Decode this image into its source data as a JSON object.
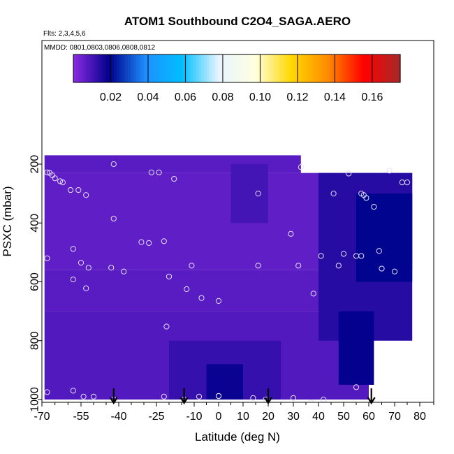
{
  "chart_data": {
    "type": "heatmap",
    "title": "ATOM1 Southbound C2O4_SAGA.AERO",
    "subtitle_flights": "Flts: 2,3,4,5,6",
    "subtitle_dates": "MMDD: 0801,0803,0806,0808,0812",
    "xlabel": "Latitude (deg N)",
    "ylabel": "PSXC (mbar)",
    "xlim": [
      -70,
      85
    ],
    "ylim": [
      1000,
      0
    ],
    "x_ticks": [
      -70,
      -55,
      -40,
      -25,
      -10,
      0,
      10,
      20,
      30,
      40,
      50,
      60,
      70,
      80
    ],
    "x_minor_ticks": [
      -65,
      -60,
      -50,
      -45,
      -35,
      -30,
      -20,
      -15,
      -5,
      5,
      15,
      25,
      35,
      45,
      55,
      65,
      75,
      85
    ],
    "y_ticks": [
      200,
      400,
      600,
      800,
      1000
    ],
    "colorbar": {
      "ticks": [
        0.02,
        0.04,
        0.06,
        0.08,
        0.1,
        0.12,
        0.14,
        0.16
      ],
      "tick_labels": [
        "0.02",
        "0.04",
        "0.06",
        "0.08",
        "0.10",
        "0.12",
        "0.14",
        "0.16"
      ],
      "range": [
        0,
        0.175
      ],
      "colors": [
        "#8b2be2",
        "#00008b",
        "#1e90ff",
        "#00bfff",
        "#e8f4ff",
        "#ffffe0",
        "#ffd700",
        "#ff8c00",
        "#ff0000",
        "#a52a2a"
      ]
    },
    "grid": false,
    "legend": "colorbar top",
    "field_regions": [
      {
        "lat": [
          -69,
          33
        ],
        "p": [
          170,
          230
        ],
        "value": 0.007
      },
      {
        "lat": [
          -69,
          77
        ],
        "p": [
          230,
          560
        ],
        "value": 0.006
      },
      {
        "lat": [
          -69,
          70
        ],
        "p": [
          560,
          700
        ],
        "value": 0.007
      },
      {
        "lat": [
          -69,
          60
        ],
        "p": [
          700,
          1000
        ],
        "value": 0.008
      },
      {
        "lat": [
          -20,
          25
        ],
        "p": [
          800,
          1000
        ],
        "value": 0.012
      },
      {
        "lat": [
          -5,
          10
        ],
        "p": [
          880,
          1000
        ],
        "value": 0.018
      },
      {
        "lat": [
          40,
          77
        ],
        "p": [
          230,
          800
        ],
        "value": 0.014
      },
      {
        "lat": [
          55,
          77
        ],
        "p": [
          300,
          600
        ],
        "value": 0.02
      },
      {
        "lat": [
          48,
          62
        ],
        "p": [
          700,
          950
        ],
        "value": 0.019
      },
      {
        "lat": [
          5,
          20
        ],
        "p": [
          200,
          400
        ],
        "value": 0.01
      }
    ],
    "samples": [
      {
        "lat": -42,
        "p": 200
      },
      {
        "lat": -68,
        "p": 228
      },
      {
        "lat": -67,
        "p": 230
      },
      {
        "lat": -66,
        "p": 238
      },
      {
        "lat": -65,
        "p": 248
      },
      {
        "lat": -63,
        "p": 258
      },
      {
        "lat": -62,
        "p": 262
      },
      {
        "lat": -59,
        "p": 288
      },
      {
        "lat": -56,
        "p": 288
      },
      {
        "lat": -53,
        "p": 305
      },
      {
        "lat": -27,
        "p": 228
      },
      {
        "lat": -24,
        "p": 228
      },
      {
        "lat": -18,
        "p": 250
      },
      {
        "lat": -42,
        "p": 385
      },
      {
        "lat": 16,
        "p": 300
      },
      {
        "lat": 33,
        "p": 210
      },
      {
        "lat": 46,
        "p": 300
      },
      {
        "lat": 52,
        "p": 232
      },
      {
        "lat": 57,
        "p": 300
      },
      {
        "lat": 58,
        "p": 305
      },
      {
        "lat": 59,
        "p": 315
      },
      {
        "lat": 62,
        "p": 345
      },
      {
        "lat": 68,
        "p": 222
      },
      {
        "lat": 73,
        "p": 262
      },
      {
        "lat": 75,
        "p": 262
      },
      {
        "lat": -31,
        "p": 465
      },
      {
        "lat": -28,
        "p": 468
      },
      {
        "lat": -22,
        "p": 462
      },
      {
        "lat": -58,
        "p": 488
      },
      {
        "lat": -68,
        "p": 520
      },
      {
        "lat": -55,
        "p": 535
      },
      {
        "lat": -52,
        "p": 552
      },
      {
        "lat": -43,
        "p": 552
      },
      {
        "lat": -38,
        "p": 565
      },
      {
        "lat": -11,
        "p": 545
      },
      {
        "lat": 16,
        "p": 545
      },
      {
        "lat": 29,
        "p": 437
      },
      {
        "lat": 32,
        "p": 545
      },
      {
        "lat": 41,
        "p": 512
      },
      {
        "lat": 48,
        "p": 545
      },
      {
        "lat": 50,
        "p": 505
      },
      {
        "lat": 55,
        "p": 512
      },
      {
        "lat": 57,
        "p": 512
      },
      {
        "lat": 64,
        "p": 495
      },
      {
        "lat": 65,
        "p": 555
      },
      {
        "lat": 70,
        "p": 565
      },
      {
        "lat": -58,
        "p": 592
      },
      {
        "lat": -53,
        "p": 622
      },
      {
        "lat": -20,
        "p": 582
      },
      {
        "lat": -13,
        "p": 625
      },
      {
        "lat": -7,
        "p": 655
      },
      {
        "lat": 0,
        "p": 665
      },
      {
        "lat": 38,
        "p": 640
      },
      {
        "lat": -21,
        "p": 752
      },
      {
        "lat": -68,
        "p": 975
      },
      {
        "lat": -58,
        "p": 970
      },
      {
        "lat": -54,
        "p": 990
      },
      {
        "lat": -50,
        "p": 990
      },
      {
        "lat": -42,
        "p": 1000
      },
      {
        "lat": -22,
        "p": 990
      },
      {
        "lat": -14,
        "p": 1000
      },
      {
        "lat": -8,
        "p": 990
      },
      {
        "lat": 0,
        "p": 988
      },
      {
        "lat": 0,
        "p": 988
      },
      {
        "lat": 14,
        "p": 995
      },
      {
        "lat": 19,
        "p": 1000
      },
      {
        "lat": 30,
        "p": 995
      },
      {
        "lat": 37,
        "p": 1010
      },
      {
        "lat": 42,
        "p": 1000
      },
      {
        "lat": 55,
        "p": 958
      }
    ],
    "arrows": [
      -42,
      -14,
      20,
      61
    ]
  }
}
